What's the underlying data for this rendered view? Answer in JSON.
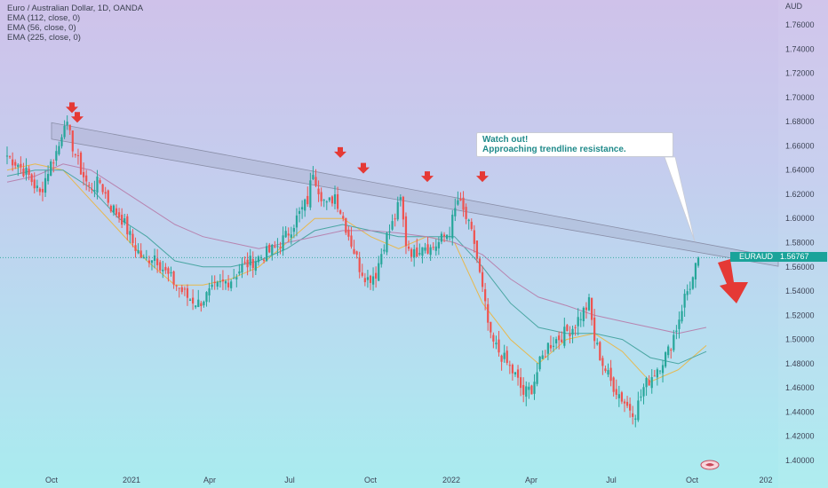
{
  "legend": {
    "symbol": "Euro / Australian Dollar, 1D, OANDA",
    "ema1": "EMA (112, close, 0)",
    "ema2": "EMA (56, close, 0)",
    "ema3": "EMA (225, close, 0)"
  },
  "annotation": {
    "line1": "Watch out!",
    "line2": "Approaching trendline resistance."
  },
  "price_tag": {
    "symbol": "EURAUD",
    "value": "1.56767"
  },
  "colors": {
    "up": "#26a69a",
    "down": "#ef5350",
    "ema112": "#4aa6a3",
    "ema56": "#e8b84d",
    "ema225": "#b784b0",
    "arrow": "#e53935",
    "channel": "#8a8fa8"
  },
  "chart_data": {
    "type": "candlestick",
    "currency_label": "AUD",
    "y_ticks": [
      "1.76000",
      "1.74000",
      "1.72000",
      "1.70000",
      "1.68000",
      "1.66000",
      "1.64000",
      "1.62000",
      "1.60000",
      "1.58000",
      "1.56000",
      "1.54000",
      "1.52000",
      "1.50000",
      "1.48000",
      "1.46000",
      "1.44000",
      "1.42000",
      "1.40000"
    ],
    "x_ticks": [
      "Oct",
      "2021",
      "Apr",
      "Jul",
      "Oct",
      "2022",
      "Apr",
      "Jul",
      "Oct",
      "202"
    ],
    "ylim": [
      1.395,
      1.77
    ],
    "close_path": [
      [
        0,
        1.652
      ],
      [
        4,
        1.645
      ],
      [
        8,
        1.635
      ],
      [
        12,
        1.62
      ],
      [
        15,
        1.64
      ],
      [
        19,
        1.66
      ],
      [
        21,
        1.682
      ],
      [
        24,
        1.66
      ],
      [
        27,
        1.64
      ],
      [
        30,
        1.625
      ],
      [
        34,
        1.63
      ],
      [
        38,
        1.61
      ],
      [
        42,
        1.6
      ],
      [
        46,
        1.58
      ],
      [
        50,
        1.565
      ],
      [
        54,
        1.57
      ],
      [
        58,
        1.555
      ],
      [
        62,
        1.545
      ],
      [
        66,
        1.535
      ],
      [
        70,
        1.53
      ],
      [
        74,
        1.538
      ],
      [
        78,
        1.545
      ],
      [
        82,
        1.55
      ],
      [
        86,
        1.56
      ],
      [
        90,
        1.565
      ],
      [
        94,
        1.57
      ],
      [
        98,
        1.575
      ],
      [
        102,
        1.585
      ],
      [
        106,
        1.6
      ],
      [
        110,
        1.615
      ],
      [
        112,
        1.64
      ],
      [
        114,
        1.625
      ],
      [
        117,
        1.61
      ],
      [
        120,
        1.62
      ],
      [
        123,
        1.6
      ],
      [
        126,
        1.58
      ],
      [
        129,
        1.56
      ],
      [
        132,
        1.55
      ],
      [
        135,
        1.555
      ],
      [
        138,
        1.58
      ],
      [
        141,
        1.595
      ],
      [
        144,
        1.615
      ],
      [
        146,
        1.58
      ],
      [
        149,
        1.57
      ],
      [
        152,
        1.58
      ],
      [
        155,
        1.575
      ],
      [
        158,
        1.58
      ],
      [
        162,
        1.59
      ],
      [
        165,
        1.615
      ],
      [
        168,
        1.6
      ],
      [
        171,
        1.58
      ],
      [
        174,
        1.54
      ],
      [
        177,
        1.5
      ],
      [
        180,
        1.49
      ],
      [
        183,
        1.48
      ],
      [
        186,
        1.47
      ],
      [
        189,
        1.455
      ],
      [
        192,
        1.46
      ],
      [
        195,
        1.48
      ],
      [
        198,
        1.495
      ],
      [
        201,
        1.5
      ],
      [
        204,
        1.505
      ],
      [
        207,
        1.51
      ],
      [
        210,
        1.52
      ],
      [
        213,
        1.53
      ],
      [
        215,
        1.5
      ],
      [
        218,
        1.48
      ],
      [
        221,
        1.465
      ],
      [
        224,
        1.455
      ],
      [
        227,
        1.445
      ],
      [
        230,
        1.44
      ],
      [
        233,
        1.46
      ],
      [
        236,
        1.47
      ],
      [
        239,
        1.48
      ],
      [
        242,
        1.49
      ],
      [
        245,
        1.51
      ],
      [
        248,
        1.535
      ],
      [
        251,
        1.55
      ],
      [
        253,
        1.567
      ]
    ],
    "highlighted_highs": [
      1.682,
      1.674,
      1.645,
      1.632,
      1.625,
      1.625
    ],
    "channel_line_upper": [
      [
        0,
        1.686
      ],
      [
        253,
        1.58
      ]
    ],
    "channel_line_lower": [
      [
        0,
        1.672
      ],
      [
        253,
        1.572
      ]
    ],
    "ema_series": [
      {
        "name": "EMA (56, close, 0)",
        "values": [
          1.64,
          1.645,
          1.64,
          1.615,
          1.59,
          1.565,
          1.545,
          1.545,
          1.55,
          1.56,
          1.58,
          1.6,
          1.6,
          1.585,
          1.575,
          1.585,
          1.58,
          1.53,
          1.5,
          1.48,
          1.5,
          1.505,
          1.49,
          1.465,
          1.475,
          1.495
        ]
      },
      {
        "name": "EMA (112, close, 0)",
        "values": [
          1.635,
          1.64,
          1.64,
          1.625,
          1.6,
          1.585,
          1.565,
          1.56,
          1.56,
          1.565,
          1.575,
          1.59,
          1.595,
          1.59,
          1.585,
          1.585,
          1.585,
          1.56,
          1.53,
          1.51,
          1.505,
          1.505,
          1.5,
          1.485,
          1.48,
          1.49
        ]
      },
      {
        "name": "EMA (225, close, 0)",
        "values": [
          1.63,
          1.635,
          1.645,
          1.64,
          1.625,
          1.61,
          1.595,
          1.585,
          1.58,
          1.575,
          1.58,
          1.585,
          1.59,
          1.59,
          1.588,
          1.585,
          1.58,
          1.57,
          1.55,
          1.535,
          1.528,
          1.52,
          1.515,
          1.51,
          1.505,
          1.51
        ]
      }
    ],
    "last_price": 1.56767
  }
}
